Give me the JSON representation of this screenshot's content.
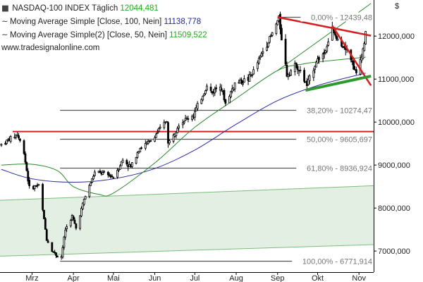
{
  "legend": {
    "index_name": "NASDAQ-100 INDEX",
    "interval": "Täglich",
    "index_value": "12044,481",
    "ma1_label": "Moving Average Simple",
    "ma1_params": "[Close, 100, Nein]",
    "ma1_value": "11138,778",
    "ma2_label": "Moving Average Simple(2)",
    "ma2_params": "[Close, 50, Nein]",
    "ma2_value": "11509,522",
    "source": "www.tradesignalonline.com",
    "ma_symbol": "~"
  },
  "colors": {
    "index_value": "#22aa22",
    "ma1": "#2222aa",
    "ma2": "#22aa22",
    "candle": "#000000",
    "ma100_line": "#2a2aa8",
    "ma50_line": "#2b8a2b",
    "channel": "#7dbd7d",
    "channel_fill": "#e3efe3",
    "red_line": "#d42020",
    "green_trend": "#2e9a2e",
    "fib_line": "#555555"
  },
  "chart_data": {
    "type": "candlestick",
    "unit_label": "$",
    "y_ticks": [
      "12000,000",
      "11000,000",
      "10000,000",
      "9000,000",
      "8000,000",
      "7000,000"
    ],
    "y_tick_values": [
      12000,
      11000,
      10000,
      9000,
      8000,
      7000
    ],
    "ylim": [
      6510,
      12840
    ],
    "x_ticks": [
      "Mrz",
      "Apr",
      "Mai",
      "Jun",
      "Jul",
      "Aug",
      "Sep",
      "Okt",
      "Nov"
    ],
    "x_tick_dates": [
      "2020-03-01",
      "2020-04-01",
      "2020-05-01",
      "2020-06-01",
      "2020-07-01",
      "2020-08-01",
      "2020-09-01",
      "2020-10-01",
      "2020-11-01"
    ],
    "xlim": [
      "2020-02-06",
      "2020-11-12"
    ],
    "fibonacci_levels": [
      {
        "label": "0,00% - 12439,48",
        "value": 12439.48
      },
      {
        "label": "38,20% - 10274,47",
        "value": 10274.47
      },
      {
        "label": "50,00% - 9605,697",
        "value": 9605.697
      },
      {
        "label": "61,80% - 8936,924",
        "value": 8936.924
      },
      {
        "label": "100,00% - 6771,914",
        "value": 6771.914
      }
    ],
    "horizontal_resistance": {
      "value": 9780
    },
    "anchors": [
      [
        "2020-02-07",
        9480
      ],
      [
        "2020-02-19",
        9718
      ],
      [
        "2020-02-24",
        9300
      ],
      [
        "2020-02-28",
        8460
      ],
      [
        "2020-03-06",
        8530
      ],
      [
        "2020-03-09",
        7950
      ],
      [
        "2020-03-12",
        7280
      ],
      [
        "2020-03-16",
        7020
      ],
      [
        "2020-03-20",
        6880
      ],
      [
        "2020-03-23",
        6880
      ],
      [
        "2020-03-26",
        7500
      ],
      [
        "2020-03-31",
        7810
      ],
      [
        "2020-04-03",
        7530
      ],
      [
        "2020-04-09",
        8200
      ],
      [
        "2020-04-17",
        8830
      ],
      [
        "2020-04-24",
        8800
      ],
      [
        "2020-05-01",
        8720
      ],
      [
        "2020-05-08",
        9120
      ],
      [
        "2020-05-14",
        8950
      ],
      [
        "2020-05-20",
        9380
      ],
      [
        "2020-05-29",
        9560
      ],
      [
        "2020-06-10",
        10050
      ],
      [
        "2020-06-11",
        9490
      ],
      [
        "2020-06-19",
        9960
      ],
      [
        "2020-06-30",
        10170
      ],
      [
        "2020-07-10",
        10830
      ],
      [
        "2020-07-14",
        10680
      ],
      [
        "2020-07-20",
        10900
      ],
      [
        "2020-07-24",
        10430
      ],
      [
        "2020-07-31",
        10900
      ],
      [
        "2020-08-10",
        11000
      ],
      [
        "2020-08-14",
        11180
      ],
      [
        "2020-08-21",
        11650
      ],
      [
        "2020-08-28",
        12060
      ],
      [
        "2020-09-02",
        12420
      ],
      [
        "2020-09-08",
        11100
      ],
      [
        "2020-09-15",
        11340
      ],
      [
        "2020-09-23",
        10850
      ],
      [
        "2020-09-30",
        11420
      ],
      [
        "2020-10-06",
        11610
      ],
      [
        "2020-10-12",
        12170
      ],
      [
        "2020-10-16",
        11880
      ],
      [
        "2020-10-23",
        11740
      ],
      [
        "2020-10-28",
        11290
      ],
      [
        "2020-10-30",
        11100
      ],
      [
        "2020-11-04",
        11690
      ],
      [
        "2020-11-06",
        12044
      ]
    ],
    "ma100_points": [
      [
        "2020-02-07",
        8900
      ],
      [
        "2020-03-01",
        8680
      ],
      [
        "2020-04-01",
        8600
      ],
      [
        "2020-05-01",
        8680
      ],
      [
        "2020-06-01",
        8920
      ],
      [
        "2020-07-01",
        9350
      ],
      [
        "2020-08-01",
        9950
      ],
      [
        "2020-09-01",
        10500
      ],
      [
        "2020-10-01",
        10850
      ],
      [
        "2020-11-06",
        11139
      ]
    ],
    "ma50_points": [
      [
        "2020-02-07",
        9000
      ],
      [
        "2020-03-01",
        9020
      ],
      [
        "2020-03-20",
        8870
      ],
      [
        "2020-04-01",
        8500
      ],
      [
        "2020-04-20",
        8320
      ],
      [
        "2020-05-01",
        8350
      ],
      [
        "2020-06-01",
        9050
      ],
      [
        "2020-07-01",
        9880
      ],
      [
        "2020-08-01",
        10550
      ],
      [
        "2020-09-01",
        11200
      ],
      [
        "2020-09-20",
        11350
      ],
      [
        "2020-10-01",
        11400
      ],
      [
        "2020-11-06",
        11510
      ]
    ],
    "regression_channel": {
      "start": "2020-02-06",
      "end": "2020-11-12",
      "upper": [
        8180,
        8520
      ],
      "lower": [
        6880,
        7150
      ]
    },
    "ma50_extension": [
      [
        "2020-09-01",
        11200
      ],
      [
        "2020-11-10",
        12760
      ]
    ],
    "red_trendlines": [
      [
        [
          "2020-09-01",
          12440
        ],
        [
          "2020-11-10",
          12010
        ]
      ],
      [
        [
          "2020-10-12",
          12240
        ],
        [
          "2020-11-10",
          10850
        ]
      ]
    ],
    "green_trendline": [
      [
        "2020-09-22",
        10740
      ],
      [
        "2020-11-10",
        11070
      ]
    ]
  }
}
